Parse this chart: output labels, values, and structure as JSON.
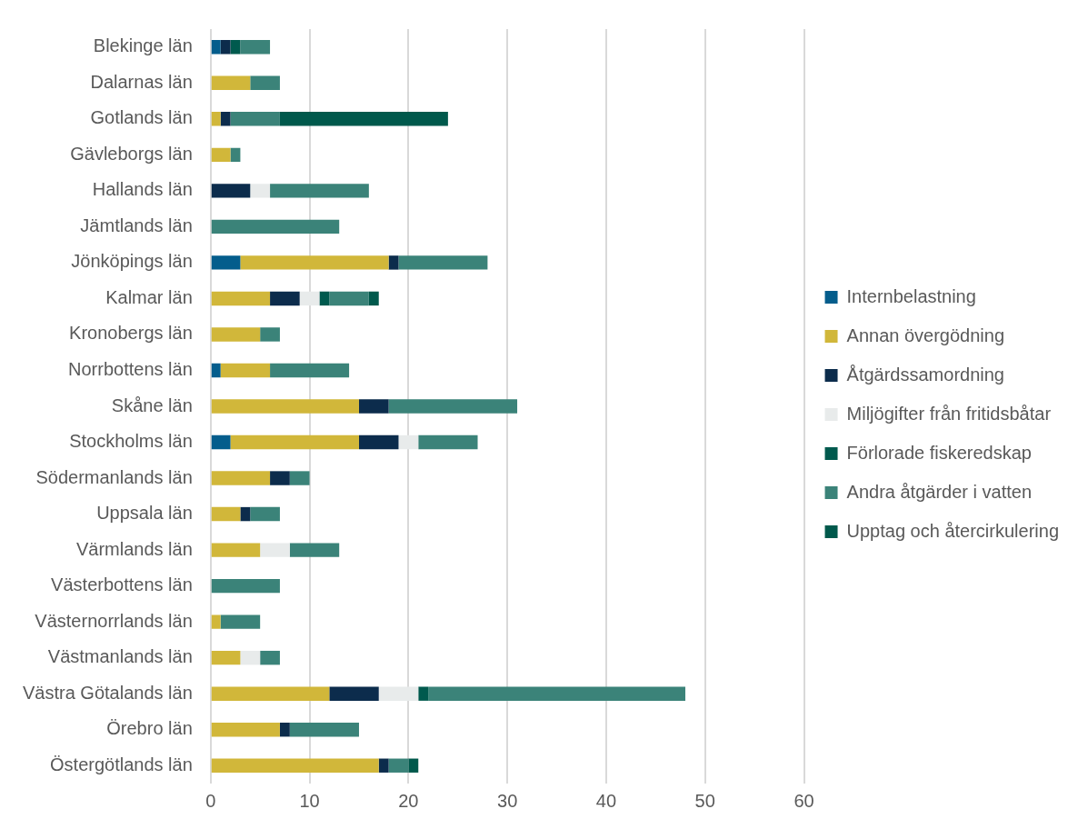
{
  "chart_data": {
    "type": "bar",
    "orientation": "horizontal",
    "stacked": true,
    "categories": [
      "Blekinge län",
      "Dalarnas län",
      "Gotlands län",
      "Gävleborgs län",
      "Hallands län",
      "Jämtlands län",
      "Jönköpings län",
      "Kalmar län",
      "Kronobergs län",
      "Norrbottens län",
      "Skåne län",
      "Stockholms län",
      "Södermanlands län",
      "Uppsala län",
      "Värmlands län",
      "Västerbottens län",
      "Västernorrlands län",
      "Västmanlands län",
      "Västra Götalands län",
      "Örebro län",
      "Östergötlands län"
    ],
    "series": [
      {
        "name": "Internbelastning",
        "color": "#045d8c",
        "values": [
          1,
          0,
          0,
          0,
          0,
          0,
          3,
          0,
          0,
          1,
          0,
          2,
          0,
          0,
          0,
          0,
          0,
          0,
          0,
          0,
          0
        ]
      },
      {
        "name": "Annan övergödning",
        "color": "#d1b73a",
        "values": [
          0,
          4,
          1,
          2,
          0,
          0,
          15,
          6,
          5,
          5,
          15,
          13,
          6,
          3,
          5,
          0,
          1,
          3,
          12,
          7,
          17
        ]
      },
      {
        "name": "Åtgärdssamordning",
        "color": "#0c2c4c",
        "values": [
          1,
          0,
          1,
          0,
          4,
          0,
          1,
          3,
          0,
          0,
          3,
          4,
          2,
          1,
          0,
          0,
          0,
          0,
          5,
          1,
          1
        ]
      },
      {
        "name": "Miljögifter från fritidsbåtar",
        "color": "#e8ebeb",
        "values": [
          0,
          0,
          0,
          0,
          2,
          0,
          0,
          2,
          0,
          0,
          0,
          2,
          0,
          0,
          3,
          0,
          0,
          2,
          4,
          0,
          0
        ]
      },
      {
        "name": "Förlorade fiskeredskap",
        "color": "#005a4e",
        "values": [
          1,
          0,
          0,
          0,
          0,
          0,
          0,
          1,
          0,
          0,
          0,
          0,
          0,
          0,
          0,
          0,
          0,
          0,
          1,
          0,
          0
        ]
      },
      {
        "name": "Andra åtgärder i vatten",
        "color": "#3b8379",
        "values": [
          3,
          3,
          5,
          1,
          10,
          13,
          9,
          4,
          2,
          8,
          13,
          6,
          2,
          3,
          5,
          7,
          4,
          2,
          26,
          7,
          2
        ]
      },
      {
        "name": "Upptag och återcirkulering",
        "color": "#00594c",
        "values": [
          0,
          0,
          17,
          0,
          0,
          0,
          0,
          1,
          0,
          0,
          0,
          0,
          0,
          0,
          0,
          0,
          0,
          0,
          0,
          0,
          1
        ]
      }
    ],
    "xlim": [
      0,
      60
    ],
    "xticks": [
      0,
      10,
      20,
      30,
      40,
      50,
      60
    ],
    "grid": "x",
    "legend": "right"
  }
}
